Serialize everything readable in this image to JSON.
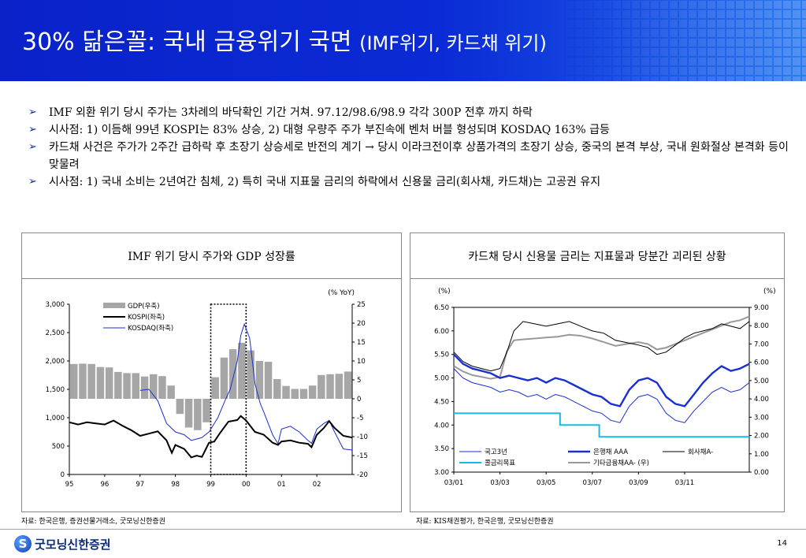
{
  "header": {
    "title_main": "30% 닮은꼴: 국내 금융위기 국면 ",
    "title_sub": "(IMF위기, 카드채 위기)"
  },
  "bullets": [
    "IMF 외환 위기 당시 주가는 3차례의 바닥확인 기간 거쳐. 97.12/98.6/98.9 각각 300P 전후 까지 하락",
    "시사점: 1) 이듬해 99년 KOSPI는 83% 상승, 2) 대형 우량주 주가 부진속에 벤처 버블 형성되며 KOSDAQ 163% 급등",
    "카드채 사건은 주가가 2주간 급하락 후 초장기 상승세로 반전의 계기 → 당시 이라크전이후 상품가격의 초장기 상승, 중국의 본격 부상, 국내 원화절상 본격화 등이 맞물려",
    "시사점: 1) 국내 소비는 2년여간 침체, 2) 특히 국내 지표물 금리의 하락에서 신용물 금리(회사채, 카드채)는 고공권 유지"
  ],
  "bullet_glyph": "➢",
  "footer": {
    "logo_mark": "S",
    "logo_text": "굿모닝신한증권",
    "page_number": "14"
  },
  "chart_data": [
    {
      "type": "bar+line",
      "title": "IMF 위기 당시 주가와 GDP 성장률",
      "source": "자료: 한국은행, 증권선물거래소, 굿모닝신한증권",
      "unit_right": "(% YoY)",
      "x_ticks": [
        "95",
        "96",
        "97",
        "98",
        "99",
        "00",
        "01",
        "02"
      ],
      "y_left": {
        "min": 0,
        "max": 3000,
        "ticks": [
          "0",
          "500",
          "1,000",
          "1,500",
          "2,000",
          "2,500",
          "3,000"
        ]
      },
      "y_right": {
        "min": -20,
        "max": 25,
        "ticks": [
          "-20",
          "-15",
          "-10",
          "-5",
          "0",
          "5",
          "10",
          "15",
          "20",
          "25"
        ]
      },
      "legend": [
        "GDP(우축)",
        "KOSPI(좌축)",
        "KOSDAQ(좌축)"
      ],
      "legend_placement": "top-left",
      "highlight_range": [
        99.0,
        100.0
      ],
      "colors": {
        "gdp": "#a6a6a6",
        "kospi": "#000000",
        "kosdaq": "#1a2fd0",
        "highlight": "#000000"
      },
      "series": [
        {
          "name": "GDP(우축)",
          "axis": "right",
          "points": [
            [
              95.0,
              9.2
            ],
            [
              95.25,
              9.3
            ],
            [
              95.5,
              9.2
            ],
            [
              95.75,
              8.4
            ],
            [
              96.0,
              8.3
            ],
            [
              96.25,
              7.1
            ],
            [
              96.5,
              6.8
            ],
            [
              96.75,
              6.8
            ],
            [
              97.0,
              5.9
            ],
            [
              97.25,
              6.5
            ],
            [
              97.5,
              6.0
            ],
            [
              97.75,
              3.5
            ],
            [
              98.0,
              -4.0
            ],
            [
              98.25,
              -7.6
            ],
            [
              98.5,
              -8.3
            ],
            [
              98.75,
              -6.2
            ],
            [
              99.0,
              5.7
            ],
            [
              99.25,
              10.9
            ],
            [
              99.5,
              13.1
            ],
            [
              99.75,
              14.8
            ],
            [
              100.0,
              12.8
            ],
            [
              100.25,
              10.0
            ],
            [
              100.5,
              9.8
            ],
            [
              100.75,
              5.2
            ],
            [
              101.0,
              3.4
            ],
            [
              101.25,
              2.6
            ],
            [
              101.5,
              2.6
            ],
            [
              101.75,
              3.5
            ],
            [
              102.0,
              6.3
            ],
            [
              102.25,
              6.5
            ],
            [
              102.5,
              6.6
            ],
            [
              102.75,
              7.2
            ]
          ]
        },
        {
          "name": "KOSPI(좌축)",
          "axis": "left",
          "points": [
            [
              95.0,
              920
            ],
            [
              95.25,
              880
            ],
            [
              95.5,
              920
            ],
            [
              95.75,
              900
            ],
            [
              96.0,
              880
            ],
            [
              96.25,
              950
            ],
            [
              96.5,
              860
            ],
            [
              96.75,
              780
            ],
            [
              97.0,
              680
            ],
            [
              97.25,
              720
            ],
            [
              97.5,
              760
            ],
            [
              97.75,
              600
            ],
            [
              97.9,
              380
            ],
            [
              98.0,
              520
            ],
            [
              98.25,
              450
            ],
            [
              98.45,
              300
            ],
            [
              98.6,
              330
            ],
            [
              98.75,
              310
            ],
            [
              98.95,
              560
            ],
            [
              99.1,
              580
            ],
            [
              99.25,
              720
            ],
            [
              99.5,
              930
            ],
            [
              99.75,
              960
            ],
            [
              99.85,
              1030
            ],
            [
              100.0,
              950
            ],
            [
              100.25,
              750
            ],
            [
              100.5,
              700
            ],
            [
              100.75,
              560
            ],
            [
              100.9,
              520
            ],
            [
              101.0,
              580
            ],
            [
              101.25,
              600
            ],
            [
              101.5,
              560
            ],
            [
              101.75,
              540
            ],
            [
              101.85,
              480
            ],
            [
              102.0,
              700
            ],
            [
              102.2,
              820
            ],
            [
              102.35,
              940
            ],
            [
              102.5,
              820
            ],
            [
              102.75,
              680
            ],
            [
              103.0,
              650
            ]
          ]
        },
        {
          "name": "KOSDAQ(좌축)",
          "axis": "left",
          "points": [
            [
              97.0,
              1480
            ],
            [
              97.25,
              1500
            ],
            [
              97.5,
              1300
            ],
            [
              97.75,
              900
            ],
            [
              98.0,
              750
            ],
            [
              98.25,
              700
            ],
            [
              98.45,
              600
            ],
            [
              98.75,
              650
            ],
            [
              98.95,
              750
            ],
            [
              99.2,
              1000
            ],
            [
              99.4,
              1300
            ],
            [
              99.55,
              1500
            ],
            [
              99.75,
              2000
            ],
            [
              99.85,
              2450
            ],
            [
              99.95,
              2650
            ],
            [
              100.1,
              2400
            ],
            [
              100.25,
              1600
            ],
            [
              100.4,
              1250
            ],
            [
              100.5,
              1100
            ],
            [
              100.75,
              700
            ],
            [
              100.9,
              540
            ],
            [
              101.0,
              800
            ],
            [
              101.25,
              850
            ],
            [
              101.5,
              750
            ],
            [
              101.75,
              600
            ],
            [
              101.85,
              550
            ],
            [
              102.0,
              800
            ],
            [
              102.2,
              900
            ],
            [
              102.35,
              950
            ],
            [
              102.5,
              750
            ],
            [
              102.75,
              450
            ],
            [
              103.0,
              430
            ]
          ]
        }
      ]
    },
    {
      "type": "line",
      "title": "카드채 당시 신용물 금리는 지표물과 당분간 괴리된 상황",
      "source": "자료: KIS채권평가, 한국은행, 굿모닝신한증권",
      "unit_left": "(%)",
      "unit_right": "(%)",
      "x_ticks": [
        "03/01",
        "03/03",
        "03/05",
        "03/07",
        "03/09",
        "03/11"
      ],
      "y_left": {
        "min": 3.0,
        "max": 6.5,
        "ticks": [
          "3.00",
          "3.50",
          "4.00",
          "4.50",
          "5.00",
          "5.50",
          "6.00",
          "6.50"
        ]
      },
      "y_right": {
        "min": 0.0,
        "max": 9.0,
        "ticks": [
          "0.00",
          "1.00",
          "2.00",
          "3.00",
          "4.00",
          "5.00",
          "6.00",
          "7.00",
          "8.00",
          "9.00"
        ]
      },
      "legend": [
        "국고3년",
        "은행채 AAA",
        "회사채A-",
        "콜금리목표",
        "기타금융채AA- (우)"
      ],
      "legend_placement": "bottom",
      "colors": {
        "govt3y": "#1a2fd0",
        "bankaaa": "#1a2fd0",
        "corpA": "#000000",
        "call": "#1ab8e8",
        "otherAA": "#999999"
      },
      "series": [
        {
          "name": "국고3년",
          "axis": "left",
          "points": [
            [
              0,
              5.2
            ],
            [
              0.4,
              5.0
            ],
            [
              0.8,
              4.9
            ],
            [
              1.2,
              4.85
            ],
            [
              1.6,
              4.8
            ],
            [
              2.0,
              4.7
            ],
            [
              2.4,
              4.75
            ],
            [
              2.8,
              4.7
            ],
            [
              3.2,
              4.6
            ],
            [
              3.6,
              4.65
            ],
            [
              4.0,
              4.55
            ],
            [
              4.4,
              4.65
            ],
            [
              4.8,
              4.6
            ],
            [
              5.2,
              4.5
            ],
            [
              5.6,
              4.4
            ],
            [
              6.0,
              4.3
            ],
            [
              6.4,
              4.25
            ],
            [
              6.8,
              4.1
            ],
            [
              7.2,
              4.05
            ],
            [
              7.6,
              4.4
            ],
            [
              8.0,
              4.6
            ],
            [
              8.4,
              4.65
            ],
            [
              8.8,
              4.55
            ],
            [
              9.2,
              4.25
            ],
            [
              9.6,
              4.1
            ],
            [
              10.0,
              4.05
            ],
            [
              10.4,
              4.3
            ],
            [
              10.8,
              4.5
            ],
            [
              11.2,
              4.7
            ],
            [
              11.6,
              4.8
            ],
            [
              12.0,
              4.7
            ],
            [
              12.4,
              4.75
            ],
            [
              12.8,
              4.9
            ]
          ]
        },
        {
          "name": "은행채 AAA",
          "axis": "left",
          "points": [
            [
              0,
              5.5
            ],
            [
              0.4,
              5.3
            ],
            [
              0.8,
              5.2
            ],
            [
              1.2,
              5.15
            ],
            [
              1.6,
              5.1
            ],
            [
              2.0,
              5.0
            ],
            [
              2.4,
              5.05
            ],
            [
              2.8,
              5.0
            ],
            [
              3.2,
              4.95
            ],
            [
              3.6,
              5.0
            ],
            [
              4.0,
              4.9
            ],
            [
              4.4,
              5.0
            ],
            [
              4.8,
              4.95
            ],
            [
              5.2,
              4.85
            ],
            [
              5.6,
              4.75
            ],
            [
              6.0,
              4.65
            ],
            [
              6.4,
              4.6
            ],
            [
              6.8,
              4.45
            ],
            [
              7.2,
              4.4
            ],
            [
              7.6,
              4.75
            ],
            [
              8.0,
              4.95
            ],
            [
              8.4,
              5.0
            ],
            [
              8.8,
              4.9
            ],
            [
              9.2,
              4.6
            ],
            [
              9.6,
              4.45
            ],
            [
              10.0,
              4.4
            ],
            [
              10.4,
              4.65
            ],
            [
              10.8,
              4.9
            ],
            [
              11.2,
              5.1
            ],
            [
              11.6,
              5.25
            ],
            [
              12.0,
              5.15
            ],
            [
              12.4,
              5.2
            ],
            [
              12.8,
              5.3
            ]
          ]
        },
        {
          "name": "회사채A-",
          "axis": "left",
          "points": [
            [
              0,
              5.55
            ],
            [
              0.4,
              5.35
            ],
            [
              0.8,
              5.25
            ],
            [
              1.2,
              5.2
            ],
            [
              1.6,
              5.15
            ],
            [
              2.0,
              5.2
            ],
            [
              2.3,
              5.55
            ],
            [
              2.6,
              6.0
            ],
            [
              3.0,
              6.2
            ],
            [
              3.5,
              6.15
            ],
            [
              4.0,
              6.1
            ],
            [
              4.5,
              6.15
            ],
            [
              5.0,
              6.2
            ],
            [
              5.5,
              6.1
            ],
            [
              6.0,
              6.0
            ],
            [
              6.5,
              5.95
            ],
            [
              7.0,
              5.8
            ],
            [
              7.5,
              5.75
            ],
            [
              8.0,
              5.7
            ],
            [
              8.4,
              5.65
            ],
            [
              8.8,
              5.5
            ],
            [
              9.2,
              5.55
            ],
            [
              9.6,
              5.7
            ],
            [
              10.0,
              5.85
            ],
            [
              10.4,
              5.95
            ],
            [
              10.8,
              6.0
            ],
            [
              11.2,
              6.05
            ],
            [
              11.6,
              6.15
            ],
            [
              12.0,
              6.1
            ],
            [
              12.4,
              6.05
            ],
            [
              12.8,
              6.2
            ]
          ]
        },
        {
          "name": "콜금리목표",
          "axis": "left",
          "points": [
            [
              0,
              4.25
            ],
            [
              4.6,
              4.25
            ],
            [
              4.6,
              4.0
            ],
            [
              6.3,
              4.0
            ],
            [
              6.3,
              3.75
            ],
            [
              12.8,
              3.75
            ]
          ]
        },
        {
          "name": "기타금융채AA- (우)",
          "axis": "right",
          "points": [
            [
              0,
              5.8
            ],
            [
              0.4,
              5.5
            ],
            [
              0.8,
              5.3
            ],
            [
              1.2,
              5.2
            ],
            [
              1.6,
              5.1
            ],
            [
              2.0,
              5.2
            ],
            [
              2.3,
              6.6
            ],
            [
              2.6,
              7.2
            ],
            [
              3.0,
              7.25
            ],
            [
              3.5,
              7.3
            ],
            [
              4.0,
              7.35
            ],
            [
              4.5,
              7.4
            ],
            [
              5.0,
              7.5
            ],
            [
              5.5,
              7.45
            ],
            [
              6.0,
              7.3
            ],
            [
              6.5,
              7.1
            ],
            [
              7.0,
              6.9
            ],
            [
              7.5,
              7.0
            ],
            [
              8.0,
              7.1
            ],
            [
              8.4,
              7.0
            ],
            [
              8.8,
              6.7
            ],
            [
              9.2,
              6.8
            ],
            [
              9.6,
              7.0
            ],
            [
              10.0,
              7.2
            ],
            [
              10.4,
              7.4
            ],
            [
              10.8,
              7.6
            ],
            [
              11.2,
              7.8
            ],
            [
              11.6,
              8.0
            ],
            [
              12.0,
              8.2
            ],
            [
              12.4,
              8.3
            ],
            [
              12.8,
              8.5
            ]
          ]
        }
      ]
    }
  ]
}
